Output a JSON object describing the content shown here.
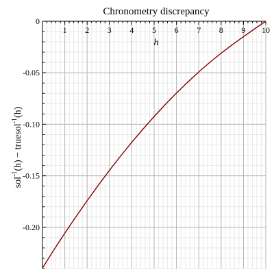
{
  "chart_data": {
    "type": "line",
    "title": "Chronometry discrepancy",
    "xlabel": "h",
    "ylabel": {
      "prefix": "sol",
      "sup1": "-1",
      "mid": "(h) − truesol",
      "sup2": "-1",
      "suffix": "(h)"
    },
    "xlim": [
      0,
      10
    ],
    "ylim": [
      -0.24,
      0
    ],
    "x_ticks": [
      {
        "value": 1,
        "label": "1"
      },
      {
        "value": 2,
        "label": "2"
      },
      {
        "value": 3,
        "label": "3"
      },
      {
        "value": 4,
        "label": "4"
      },
      {
        "value": 5,
        "label": "5"
      },
      {
        "value": 6,
        "label": "6"
      },
      {
        "value": 7,
        "label": "7"
      },
      {
        "value": 8,
        "label": "8"
      },
      {
        "value": 9,
        "label": "9"
      },
      {
        "value": 10,
        "label": "10"
      }
    ],
    "y_ticks": [
      {
        "value": 0,
        "label": "0"
      },
      {
        "value": -0.05,
        "label": "-0.05"
      },
      {
        "value": -0.1,
        "label": "-0.10"
      },
      {
        "value": -0.15,
        "label": "-0.15"
      },
      {
        "value": -0.2,
        "label": "-0.20"
      }
    ],
    "grid": true,
    "series": [
      {
        "color": "#800000",
        "x": [
          0,
          0.5,
          1,
          1.5,
          2,
          2.5,
          3,
          3.5,
          4,
          4.5,
          5,
          5.5,
          6,
          6.5,
          7,
          7.5,
          8,
          8.5,
          9,
          9.5,
          10
        ],
        "y": [
          -0.2395,
          -0.2223,
          -0.2057,
          -0.1897,
          -0.1742,
          -0.1592,
          -0.1447,
          -0.1308,
          -0.1175,
          -0.1047,
          -0.0925,
          -0.0808,
          -0.0697,
          -0.0592,
          -0.0492,
          -0.0398,
          -0.031,
          -0.0228,
          -0.015,
          -0.0074,
          0
        ]
      }
    ]
  }
}
